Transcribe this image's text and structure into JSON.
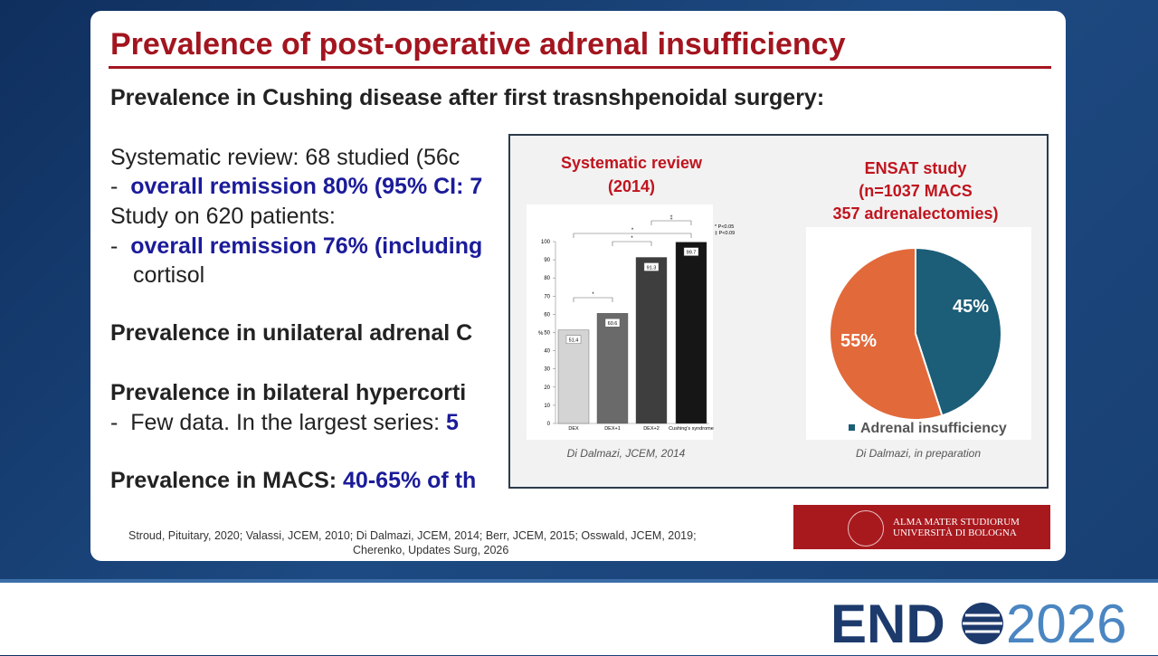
{
  "slide": {
    "title": "Prevalence of post-operative adrenal insufficiency",
    "lines": [
      {
        "text": "Prevalence in Cushing disease after first trasnshpenoidal surgery:"
      },
      {
        "text": "Systematic review: 68 studied (56c"
      },
      {
        "dash": "-",
        "text": "overall remission 80% (95% CI: 7"
      },
      {
        "text": "Study on 620 patients:"
      },
      {
        "dash": "-",
        "text": "overall remission 76% (including"
      },
      {
        "text": "cortisol"
      },
      {
        "text": "Prevalence in unilateral adrenal C"
      },
      {
        "text": "Prevalence in bilateral hypercorti"
      },
      {
        "dash": "-",
        "text": "Few data. In the largest series: ",
        "highlight": "5"
      },
      {
        "text": "Prevalence in MACS: ",
        "highlight": "40-65% of th"
      }
    ],
    "references": [
      "Stroud, Pituitary, 2020; Valassi, JCEM, 2010; Di Dalmazi, JCEM, 2014; Berr, JCEM, 2015; Osswald, JCEM, 2019;",
      "Cherenko, Updates Surg, 2026"
    ],
    "university": [
      "ALMA MATER STUDIORUM",
      "UNIVERSITÀ DI BOLOGNA"
    ]
  },
  "bar_chart": {
    "type": "bar",
    "title": [
      "Systematic review",
      "(2014)"
    ],
    "ylabel": "%",
    "categories": [
      "DEX",
      "DEX+1",
      "DEX+2",
      "Cushing's syndrome"
    ],
    "values": [
      51.4,
      60.6,
      91.3,
      99.7
    ],
    "value_labels": [
      "51.4",
      "60.6",
      "91.3",
      "99.7"
    ],
    "colors": [
      "#d4d4d4",
      "#6a6a6a",
      "#3e3e3e",
      "#161616"
    ],
    "ylim": [
      0,
      100
    ],
    "yticks": [
      0,
      10,
      20,
      30,
      40,
      50,
      60,
      70,
      80,
      90,
      100
    ],
    "annotations": [
      "*",
      "*",
      "*",
      "‡"
    ],
    "legend": [
      "* P<0.05",
      "‡ P<0.09"
    ],
    "caption": "Di Dalmazi, JCEM, 2014"
  },
  "pie_chart": {
    "type": "pie",
    "title": [
      "ENSAT study",
      "(n=1037 MACS",
      "357 adrenalectomies)"
    ],
    "categories": [
      "Adrenal insufficiency",
      null
    ],
    "values": [
      45,
      55
    ],
    "value_labels": [
      "45%",
      "55%"
    ],
    "colors": [
      "#1c5d78",
      "#e2693a"
    ],
    "caption": "Di Dalmazi, in preparation"
  },
  "logo": {
    "left": "END",
    "right": "2026"
  }
}
